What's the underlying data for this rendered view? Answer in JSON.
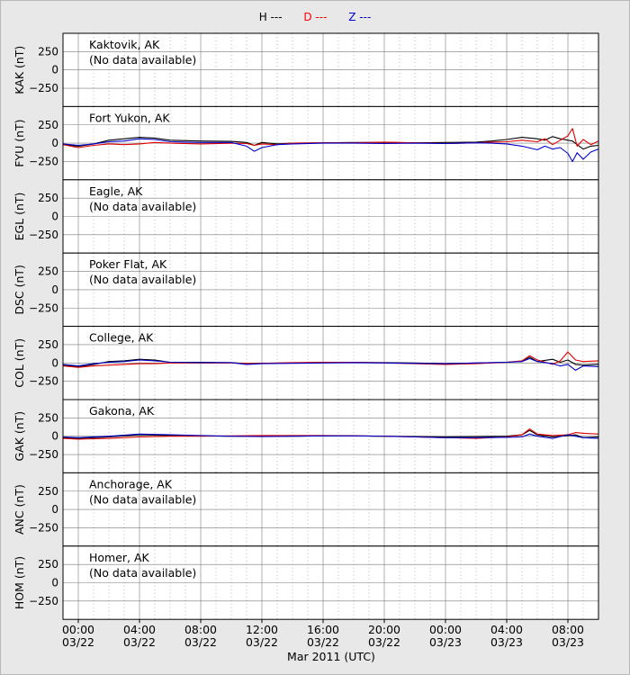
{
  "legend": [
    {
      "label": "H ---",
      "color": "#000000"
    },
    {
      "label": "D ---",
      "color": "#ff0000"
    },
    {
      "label": "Z ---",
      "color": "#0000cc"
    }
  ],
  "colors": {
    "H": "#000000",
    "D": "#dd0000",
    "Z": "#0000cc",
    "panel_bg": "#ffffff",
    "figure_bg": "#e8e8e8"
  },
  "chart_data": {
    "type": "line",
    "xlabel": "Mar 2011 (UTC)",
    "x_range_hours": [
      -1,
      34
    ],
    "x_ticks": [
      {
        "hour": 0,
        "time": "00:00",
        "date": "03/22"
      },
      {
        "hour": 4,
        "time": "04:00",
        "date": "03/22"
      },
      {
        "hour": 8,
        "time": "08:00",
        "date": "03/22"
      },
      {
        "hour": 12,
        "time": "12:00",
        "date": "03/22"
      },
      {
        "hour": 16,
        "time": "16:00",
        "date": "03/22"
      },
      {
        "hour": 20,
        "time": "20:00",
        "date": "03/22"
      },
      {
        "hour": 24,
        "time": "00:00",
        "date": "03/23"
      },
      {
        "hour": 28,
        "time": "04:00",
        "date": "03/23"
      },
      {
        "hour": 32,
        "time": "08:00",
        "date": "03/23"
      }
    ],
    "ylim": [
      -500,
      500
    ],
    "y_ticks": [
      250,
      0,
      -250
    ],
    "y_tick_labels": [
      "250",
      "0",
      "−250"
    ],
    "grid": true,
    "panels": [
      {
        "code": "KAK",
        "ylabel": "KAK (nT)",
        "station": "Kaktovik, AK",
        "note": "(No data available)",
        "series": []
      },
      {
        "code": "FYU",
        "ylabel": "FYU (nT)",
        "station": "Fort Yukon, AK",
        "note": "",
        "series": [
          {
            "name": "H",
            "x": [
              -1,
              0,
              1,
              2,
              3,
              4,
              5,
              6,
              8,
              10,
              11,
              11.5,
              12,
              13,
              14,
              16,
              18,
              20,
              22,
              24,
              26,
              27,
              28,
              29,
              30,
              30.5,
              31,
              31.5,
              32,
              32.3,
              32.6,
              33,
              33.5,
              34
            ],
            "y": [
              -20,
              -40,
              -10,
              40,
              60,
              80,
              70,
              40,
              30,
              25,
              10,
              -30,
              10,
              -10,
              0,
              5,
              10,
              10,
              5,
              10,
              15,
              30,
              50,
              80,
              60,
              40,
              90,
              60,
              40,
              30,
              -20,
              -80,
              -40,
              -30
            ]
          },
          {
            "name": "D",
            "x": [
              -1,
              0,
              1,
              2,
              3,
              4,
              5,
              6,
              8,
              10,
              11,
              11.5,
              12,
              13,
              14,
              16,
              18,
              20,
              22,
              24,
              26,
              27,
              28,
              29,
              30,
              30.5,
              31,
              31.5,
              32,
              32.3,
              32.6,
              33,
              33.5,
              34
            ],
            "y": [
              -20,
              -60,
              -30,
              -10,
              -20,
              -10,
              10,
              0,
              -10,
              0,
              -5,
              -30,
              -10,
              -20,
              0,
              5,
              5,
              15,
              5,
              -5,
              5,
              15,
              20,
              40,
              20,
              60,
              -20,
              40,
              100,
              200,
              -40,
              50,
              -20,
              30
            ]
          },
          {
            "name": "Z",
            "x": [
              -1,
              0,
              1,
              2,
              3,
              4,
              5,
              6,
              8,
              10,
              11,
              11.5,
              12,
              13,
              14,
              16,
              18,
              20,
              22,
              24,
              26,
              27,
              28,
              29,
              30,
              30.5,
              31,
              31.5,
              32,
              32.3,
              32.6,
              33,
              33.5,
              34
            ],
            "y": [
              -10,
              -30,
              -10,
              20,
              30,
              60,
              50,
              20,
              10,
              10,
              -40,
              -110,
              -60,
              -20,
              -10,
              0,
              0,
              -5,
              0,
              -5,
              5,
              0,
              -10,
              -40,
              -90,
              -40,
              -80,
              -60,
              -140,
              -250,
              -130,
              -220,
              -120,
              -80
            ]
          }
        ]
      },
      {
        "code": "EGL",
        "ylabel": "EGL (nT)",
        "station": "Eagle, AK",
        "note": "(No data available)",
        "series": []
      },
      {
        "code": "DSC",
        "ylabel": "DSC (nT)",
        "station": "Poker Flat, AK",
        "note": "(No data available)",
        "series": []
      },
      {
        "code": "COL",
        "ylabel": "COL (nT)",
        "station": "College, AK",
        "note": "",
        "series": [
          {
            "name": "H",
            "x": [
              -1,
              0,
              1,
              2,
              3,
              4,
              5,
              6,
              8,
              10,
              11,
              12,
              14,
              16,
              18,
              20,
              22,
              24,
              26,
              27,
              28,
              29,
              29.5,
              30,
              31,
              31.5,
              32,
              32.5,
              33,
              34
            ],
            "y": [
              -30,
              -50,
              -20,
              20,
              30,
              50,
              40,
              10,
              10,
              5,
              -10,
              -5,
              0,
              10,
              10,
              5,
              0,
              -10,
              0,
              5,
              10,
              20,
              80,
              20,
              50,
              10,
              40,
              -20,
              -30,
              -20
            ]
          },
          {
            "name": "D",
            "x": [
              -1,
              0,
              1,
              2,
              3,
              4,
              5,
              6,
              8,
              10,
              11,
              12,
              14,
              16,
              18,
              20,
              22,
              24,
              26,
              27,
              28,
              29,
              29.5,
              30,
              31,
              31.5,
              32,
              32.5,
              33,
              34
            ],
            "y": [
              -40,
              -60,
              -40,
              -30,
              -20,
              -10,
              -10,
              0,
              0,
              0,
              -10,
              -5,
              5,
              10,
              10,
              0,
              -10,
              -20,
              -10,
              0,
              10,
              30,
              100,
              40,
              -20,
              30,
              150,
              40,
              20,
              30
            ]
          },
          {
            "name": "Z",
            "x": [
              -1,
              0,
              1,
              2,
              3,
              4,
              5,
              6,
              8,
              10,
              11,
              12,
              14,
              16,
              18,
              20,
              22,
              24,
              26,
              27,
              28,
              29,
              29.5,
              30,
              31,
              31.5,
              32,
              32.5,
              33,
              34
            ],
            "y": [
              -20,
              -40,
              -10,
              10,
              20,
              40,
              30,
              10,
              5,
              5,
              -20,
              -10,
              -5,
              0,
              5,
              0,
              -5,
              -10,
              0,
              5,
              10,
              20,
              60,
              20,
              -10,
              -40,
              -20,
              -100,
              -40,
              -50
            ]
          }
        ]
      },
      {
        "code": "GAK",
        "ylabel": "GAK (nT)",
        "station": "Gakona, AK",
        "note": "",
        "series": [
          {
            "name": "H",
            "x": [
              -1,
              0,
              2,
              4,
              6,
              8,
              10,
              12,
              14,
              16,
              18,
              20,
              22,
              24,
              26,
              28,
              29,
              29.5,
              30,
              31,
              32,
              32.5,
              33,
              34
            ],
            "y": [
              -20,
              -30,
              -10,
              20,
              10,
              5,
              0,
              0,
              0,
              5,
              5,
              0,
              -5,
              -10,
              -5,
              0,
              20,
              80,
              20,
              -10,
              10,
              20,
              -20,
              -10
            ]
          },
          {
            "name": "D",
            "x": [
              -1,
              0,
              2,
              4,
              6,
              8,
              10,
              12,
              14,
              16,
              18,
              20,
              22,
              24,
              26,
              28,
              29,
              29.5,
              30,
              31,
              32,
              32.5,
              33,
              34
            ],
            "y": [
              -30,
              -40,
              -30,
              -10,
              0,
              0,
              5,
              10,
              10,
              10,
              5,
              0,
              -10,
              -20,
              -30,
              -10,
              20,
              100,
              30,
              10,
              20,
              50,
              40,
              30
            ]
          },
          {
            "name": "Z",
            "x": [
              -1,
              0,
              2,
              4,
              6,
              8,
              10,
              12,
              14,
              16,
              18,
              20,
              22,
              24,
              26,
              28,
              29,
              29.5,
              30,
              31,
              32,
              32.5,
              33,
              34
            ],
            "y": [
              -10,
              -20,
              0,
              30,
              20,
              10,
              0,
              -5,
              0,
              5,
              5,
              0,
              -10,
              -20,
              -20,
              -15,
              -10,
              30,
              0,
              -30,
              20,
              0,
              -20,
              -30
            ]
          }
        ]
      },
      {
        "code": "ANC",
        "ylabel": "ANC (nT)",
        "station": "Anchorage, AK",
        "note": "(No data available)",
        "series": []
      },
      {
        "code": "HOM",
        "ylabel": "HOM (nT)",
        "station": "Homer, AK",
        "note": "(No data available)",
        "series": []
      }
    ]
  }
}
